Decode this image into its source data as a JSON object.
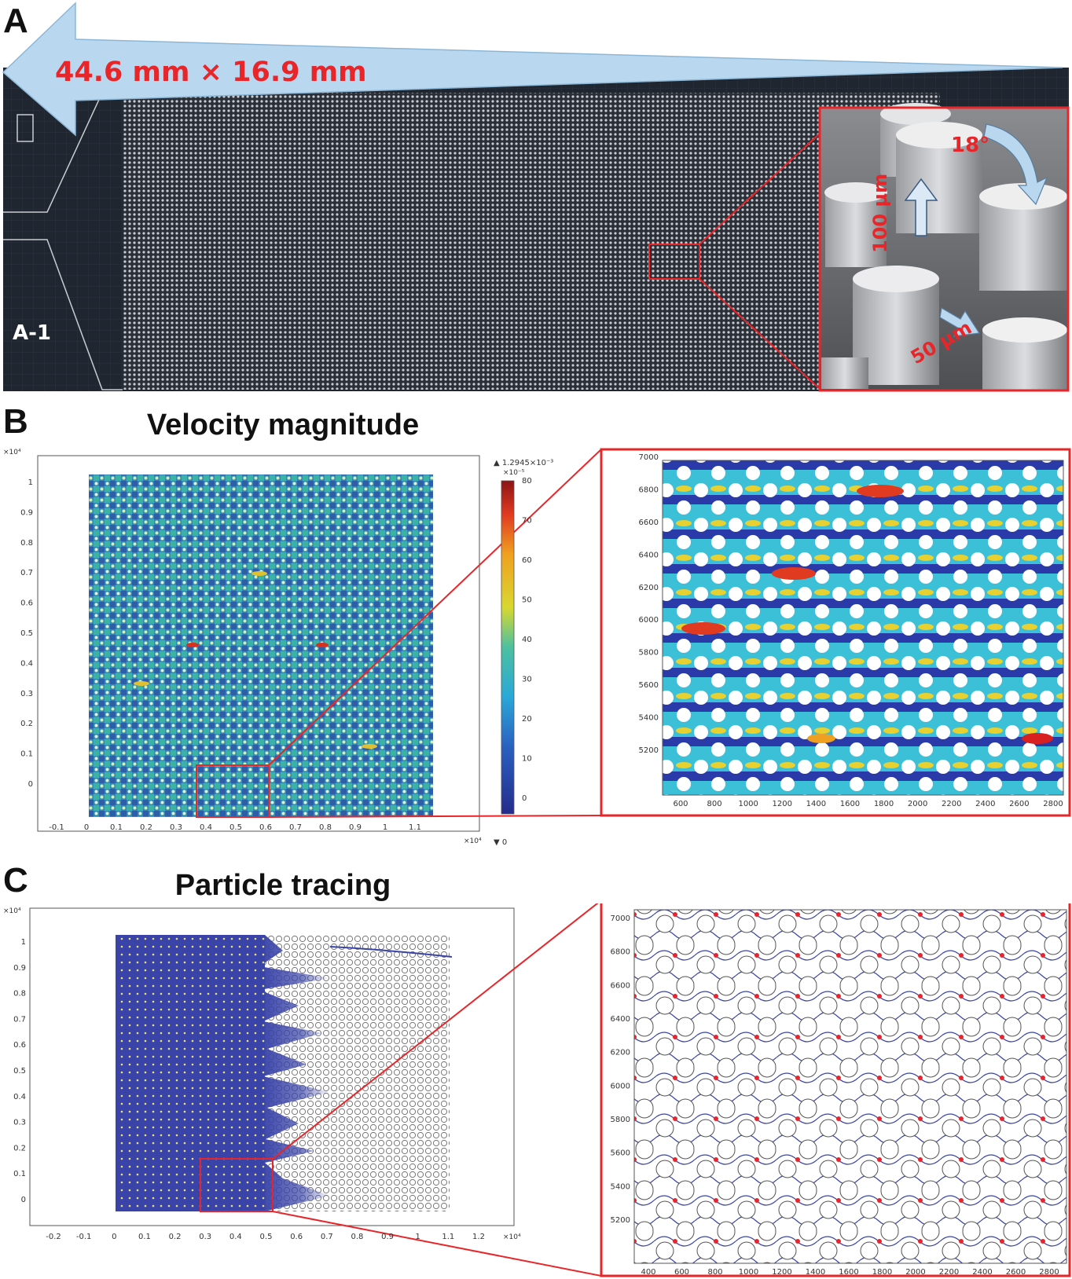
{
  "panels": {
    "a": {
      "letter": "A",
      "dimension_label": "44.6 mm × 16.9 mm",
      "sublabel": "A-1",
      "sem_labels": {
        "height": "100 μm",
        "gap": "50 μm",
        "angle": "18°"
      }
    },
    "b": {
      "letter": "B",
      "title": "Velocity magnitude",
      "colorbar_max": "▲ 1.2945×10⁻³",
      "colorbar_exp": "×10⁻⁵",
      "colorbar_min": "▼ 0",
      "colorbar_ticks": [
        "80",
        "70",
        "60",
        "50",
        "40",
        "30",
        "20",
        "10",
        "0"
      ],
      "y_exp": "×10⁴",
      "x_exp": "×10⁴",
      "y_ticks": [
        "1",
        "0.9",
        "0.8",
        "0.7",
        "0.6",
        "0.5",
        "0.4",
        "0.3",
        "0.2",
        "0.1",
        "0"
      ],
      "x_ticks": [
        "-0.1",
        "0",
        "0.1",
        "0.2",
        "0.3",
        "0.4",
        "0.5",
        "0.6",
        "0.7",
        "0.8",
        "0.9",
        "1",
        "1.1"
      ],
      "zoom_y_ticks": [
        "7000",
        "6800",
        "6600",
        "6400",
        "6200",
        "6000",
        "5800",
        "5600",
        "5400",
        "5200"
      ],
      "zoom_x_ticks": [
        "600",
        "800",
        "1000",
        "1200",
        "1400",
        "1600",
        "1800",
        "2000",
        "2200",
        "2400",
        "2600",
        "2800"
      ]
    },
    "c": {
      "letter": "C",
      "title": "Particle tracing",
      "y_exp": "×10⁴",
      "x_exp": "×10⁴",
      "y_ticks": [
        "1",
        "0.9",
        "0.8",
        "0.7",
        "0.6",
        "0.5",
        "0.4",
        "0.3",
        "0.2",
        "0.1",
        "0"
      ],
      "x_ticks": [
        "-0.2",
        "-0.1",
        "0",
        "0.1",
        "0.2",
        "0.3",
        "0.4",
        "0.5",
        "0.6",
        "0.7",
        "0.8",
        "0.9",
        "1",
        "1.1",
        "1.2"
      ],
      "zoom_y_ticks": [
        "7000",
        "6800",
        "6600",
        "6400",
        "6200",
        "6000",
        "5800",
        "5600",
        "5400",
        "5200"
      ],
      "zoom_x_ticks": [
        "400",
        "600",
        "800",
        "1000",
        "1200",
        "1400",
        "1600",
        "1800",
        "2000",
        "2200",
        "2400",
        "2600",
        "2800"
      ]
    }
  },
  "colors": {
    "accent_red": "#e8262a",
    "arrow_blue": "#b9d8f0",
    "dark_bg": "#1f2530",
    "flow_blue": "#3a44a8"
  }
}
